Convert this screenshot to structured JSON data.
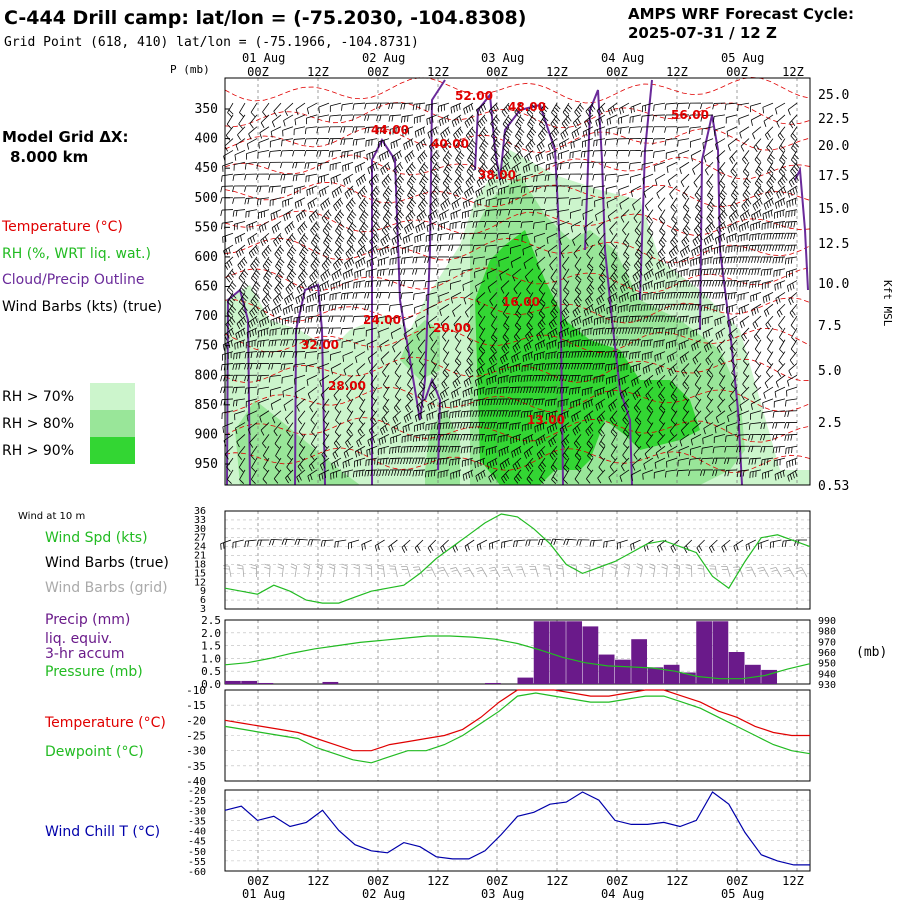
{
  "header": {
    "title": "C-444 Drill camp:  lat/lon = (-75.2030, -104.8308)",
    "subtitle": "Grid Point (618, 410) lat/lon = (-75.1966, -104.8731)",
    "forecast_label": "AMPS WRF Forecast Cycle:",
    "forecast_cycle": "2025-07-31 / 12  Z"
  },
  "time_axis": {
    "hour_labels": [
      "00Z",
      "12Z",
      "00Z",
      "12Z",
      "00Z",
      "12Z",
      "00Z",
      "12Z",
      "00Z",
      "12Z"
    ],
    "date_labels": [
      "01 Aug",
      "02 Aug",
      "03 Aug",
      "04 Aug",
      "05 Aug"
    ]
  },
  "sidebar": {
    "grid_title": "Model Grid ΔX:",
    "grid_value": "8.000 km",
    "temperature_legend": "Temperature (°C)",
    "rh_legend": "RH (%, WRT liq. wat.)",
    "cloud_legend": "Cloud/Precip Outline",
    "barbs_legend": "Wind Barbs (kts) (true)",
    "rh_levels": [
      {
        "label": "RH > 70%",
        "color": "#ccf5cc"
      },
      {
        "label": "RH > 80%",
        "color": "#99e699"
      },
      {
        "label": "RH > 90%",
        "color": "#33d633"
      }
    ]
  },
  "colors": {
    "temperature": "#e00000",
    "cloud": "#6a2a9a",
    "wind_speed": "#22bb22",
    "precip": "#6a1a8a",
    "dewpoint": "#22bb22",
    "wind_chill": "#0000aa",
    "grid_barbs": "#aaaaaa"
  },
  "chart_data": [
    {
      "type": "heatmap",
      "ylabel_left": "P (mb)",
      "ylabel_right": "Kft MSL",
      "pressure_ticks": [
        350,
        400,
        450,
        500,
        550,
        600,
        650,
        700,
        750,
        800,
        850,
        900,
        950
      ],
      "height_ticks": [
        "25.0",
        "22.5",
        "20.0",
        "17.5",
        "15.0",
        "12.5",
        "10.0",
        "7.5",
        "5.0",
        "2.5",
        "0.53"
      ],
      "temperature_labels": [
        "52.00",
        "48.00",
        "56.00",
        "44.00",
        "40.00",
        "38.00",
        "16.00",
        "24.00",
        "20.00",
        "32.00",
        "28.00",
        "13.00"
      ]
    },
    {
      "type": "line",
      "title": "Wind at 10 m",
      "series": [
        {
          "name": "Wind Spd (kts)",
          "values": [
            10,
            9,
            8,
            11,
            9,
            6,
            5,
            5,
            7,
            9,
            10,
            11,
            15,
            20,
            24,
            28,
            32,
            35,
            34,
            30,
            25,
            18,
            15,
            17,
            19,
            22,
            25,
            26,
            24,
            22,
            14,
            10,
            19,
            27,
            28,
            26,
            24
          ]
        }
      ],
      "legend": [
        "Wind Spd (kts)",
        "Wind Barbs (true)",
        "Wind Barbs (grid)"
      ],
      "y_ticks": [
        "36",
        "33",
        "30",
        "27",
        "24",
        "21",
        "18",
        "15",
        "12",
        "9",
        "6",
        "3"
      ],
      "ylim": [
        3,
        36
      ]
    },
    {
      "type": "bar",
      "legend": [
        "Precip (mm)",
        "liq. equiv.",
        "3-hr accum",
        "Pressure (mb)"
      ],
      "precip_values": [
        0.12,
        0.12,
        0.04,
        0,
        0,
        0,
        0.08,
        0,
        0,
        0,
        0,
        0,
        0,
        0,
        0,
        0,
        0.04,
        0,
        0.25,
        2.45,
        2.45,
        2.45,
        2.25,
        1.15,
        0.95,
        1.75,
        0.65,
        0.75,
        0.45,
        2.45,
        2.45,
        1.25,
        0.75,
        0.55,
        0,
        0
      ],
      "pressure_values": [
        948,
        950,
        954,
        959,
        963,
        966,
        969,
        971,
        973,
        975,
        975,
        974,
        972,
        968,
        962,
        955,
        950,
        947,
        946,
        945,
        942,
        937,
        935,
        935,
        938,
        944,
        949
      ],
      "precip_ticks": [
        "2.5",
        "2.0",
        "1.5",
        "1.0",
        "0.5",
        "0.0"
      ],
      "pressure_ticks": [
        "990",
        "980",
        "970",
        "960",
        "950",
        "940",
        "930"
      ],
      "ylabel_right": "(mb)"
    },
    {
      "type": "line",
      "series": [
        {
          "name": "Temperature (°C)",
          "values": [
            -20,
            -21,
            -22,
            -23,
            -24,
            -26,
            -28,
            -30,
            -30,
            -28,
            -27,
            -26,
            -25,
            -23,
            -19,
            -14,
            -10,
            -10,
            -10,
            -11,
            -12,
            -12,
            -11,
            -10,
            -10,
            -12,
            -14,
            -17,
            -19,
            -22,
            -24,
            -25,
            -25
          ]
        },
        {
          "name": "Dewpoint (°C)",
          "values": [
            -22,
            -23,
            -24,
            -25,
            -26,
            -29,
            -31,
            -33,
            -34,
            -32,
            -30,
            -30,
            -28,
            -25,
            -21,
            -17,
            -12,
            -11,
            -12,
            -13,
            -14,
            -14,
            -13,
            -12,
            -12,
            -14,
            -16,
            -19,
            -22,
            -25,
            -28,
            -30,
            -31
          ]
        }
      ],
      "y_ticks": [
        "-10",
        "-15",
        "-20",
        "-25",
        "-30",
        "-35",
        "-40"
      ],
      "ylim": [
        -40,
        -10
      ]
    },
    {
      "type": "line",
      "series": [
        {
          "name": "Wind Chill T (°C)",
          "values": [
            -30,
            -28,
            -35,
            -33,
            -38,
            -36,
            -30,
            -40,
            -47,
            -50,
            -51,
            -46,
            -48,
            -53,
            -54,
            -54,
            -50,
            -42,
            -33,
            -31,
            -27,
            -26,
            -21,
            -25,
            -35,
            -37,
            -37,
            -36,
            -38,
            -35,
            -21,
            -27,
            -41,
            -52,
            -55,
            -57,
            -57
          ]
        }
      ],
      "y_ticks": [
        "-20",
        "-25",
        "-30",
        "-35",
        "-40",
        "-45",
        "-50",
        "-55",
        "-60"
      ],
      "ylim": [
        -60,
        -20
      ]
    }
  ]
}
